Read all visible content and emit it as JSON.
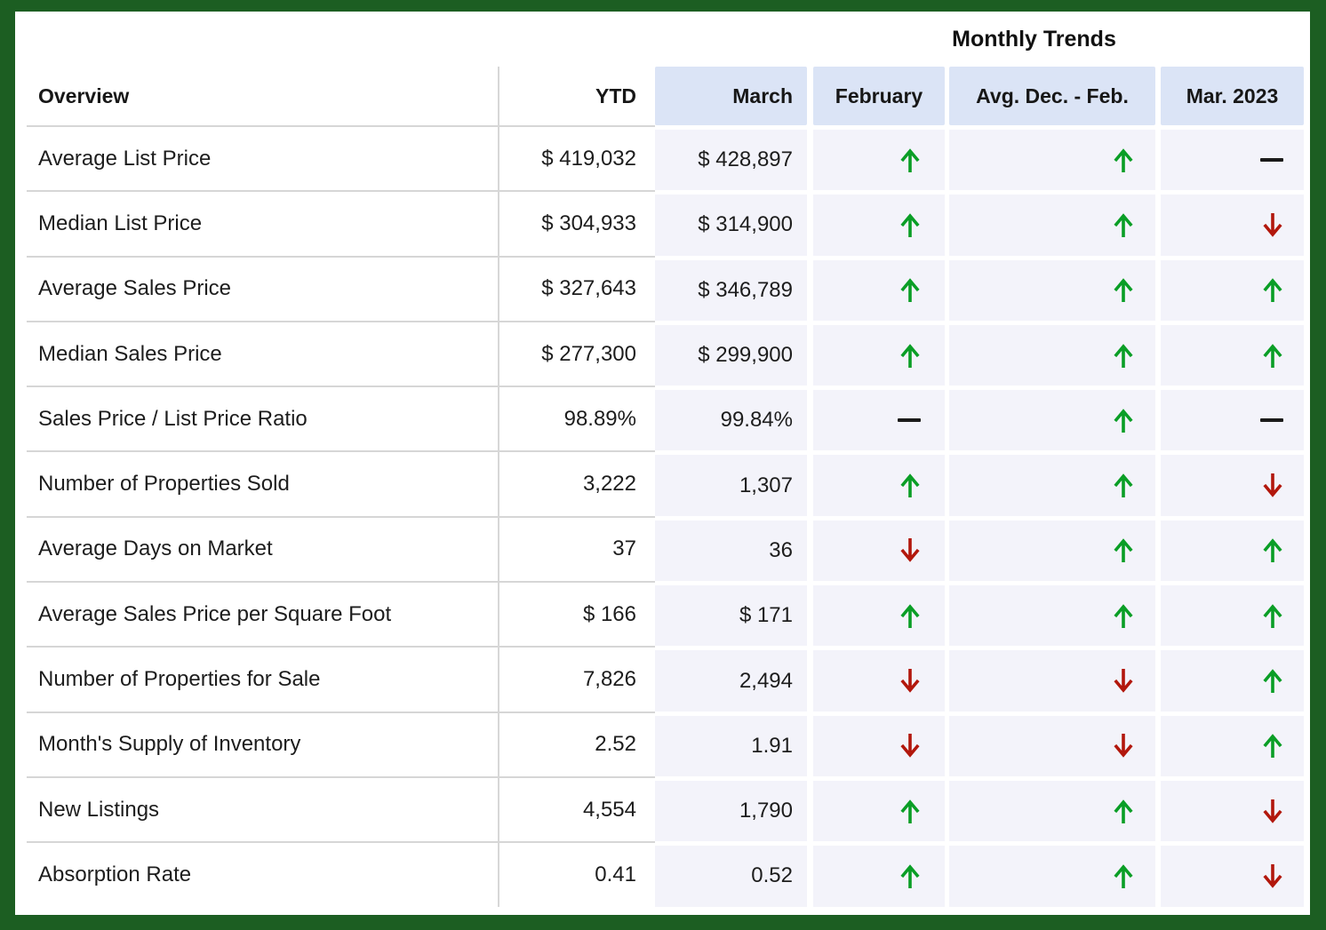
{
  "title": "Monthly Trends",
  "chart_data": {
    "type": "table",
    "title": "Monthly Trends",
    "columns": [
      "Overview",
      "YTD",
      "March",
      "February",
      "Avg. Dec. - Feb.",
      "Mar. 2023"
    ],
    "trend_columns": [
      "February",
      "Avg. Dec. - Feb.",
      "Mar. 2023"
    ],
    "rows": [
      {
        "label": "Average List Price",
        "ytd": "$ 419,032",
        "march": "$ 428,897",
        "february": "up",
        "avg_dec_feb": "up",
        "mar_2023": "flat"
      },
      {
        "label": "Median List Price",
        "ytd": "$ 304,933",
        "march": "$ 314,900",
        "february": "up",
        "avg_dec_feb": "up",
        "mar_2023": "down"
      },
      {
        "label": "Average Sales Price",
        "ytd": "$ 327,643",
        "march": "$ 346,789",
        "february": "up",
        "avg_dec_feb": "up",
        "mar_2023": "up"
      },
      {
        "label": "Median Sales Price",
        "ytd": "$ 277,300",
        "march": "$ 299,900",
        "february": "up",
        "avg_dec_feb": "up",
        "mar_2023": "up"
      },
      {
        "label": "Sales Price / List Price Ratio",
        "ytd": "98.89%",
        "march": "99.84%",
        "february": "flat",
        "avg_dec_feb": "up",
        "mar_2023": "flat"
      },
      {
        "label": "Number of Properties Sold",
        "ytd": "3,222",
        "march": "1,307",
        "february": "up",
        "avg_dec_feb": "up",
        "mar_2023": "down"
      },
      {
        "label": "Average Days on Market",
        "ytd": "37",
        "march": "36",
        "february": "down",
        "avg_dec_feb": "up",
        "mar_2023": "up"
      },
      {
        "label": "Average Sales Price per Square Foot",
        "ytd": "$ 166",
        "march": "$ 171",
        "february": "up",
        "avg_dec_feb": "up",
        "mar_2023": "up"
      },
      {
        "label": "Number of Properties for Sale",
        "ytd": "7,826",
        "march": "2,494",
        "february": "down",
        "avg_dec_feb": "down",
        "mar_2023": "up"
      },
      {
        "label": "Month's Supply of Inventory",
        "ytd": "2.52",
        "march": "1.91",
        "february": "down",
        "avg_dec_feb": "down",
        "mar_2023": "up"
      },
      {
        "label": "New Listings",
        "ytd": "4,554",
        "march": "1,790",
        "february": "up",
        "avg_dec_feb": "up",
        "mar_2023": "down"
      },
      {
        "label": "Absorption Rate",
        "ytd": "0.41",
        "march": "0.52",
        "february": "up",
        "avg_dec_feb": "up",
        "mar_2023": "down"
      }
    ]
  },
  "colors": {
    "trend_up": "#0a9e26",
    "trend_down": "#b2170c",
    "trend_flat": "#1a1a1a",
    "page_border": "#1c5e22",
    "header_cell_bg": "#dbe4f6",
    "trend_cell_bg": "#f3f3fa"
  }
}
